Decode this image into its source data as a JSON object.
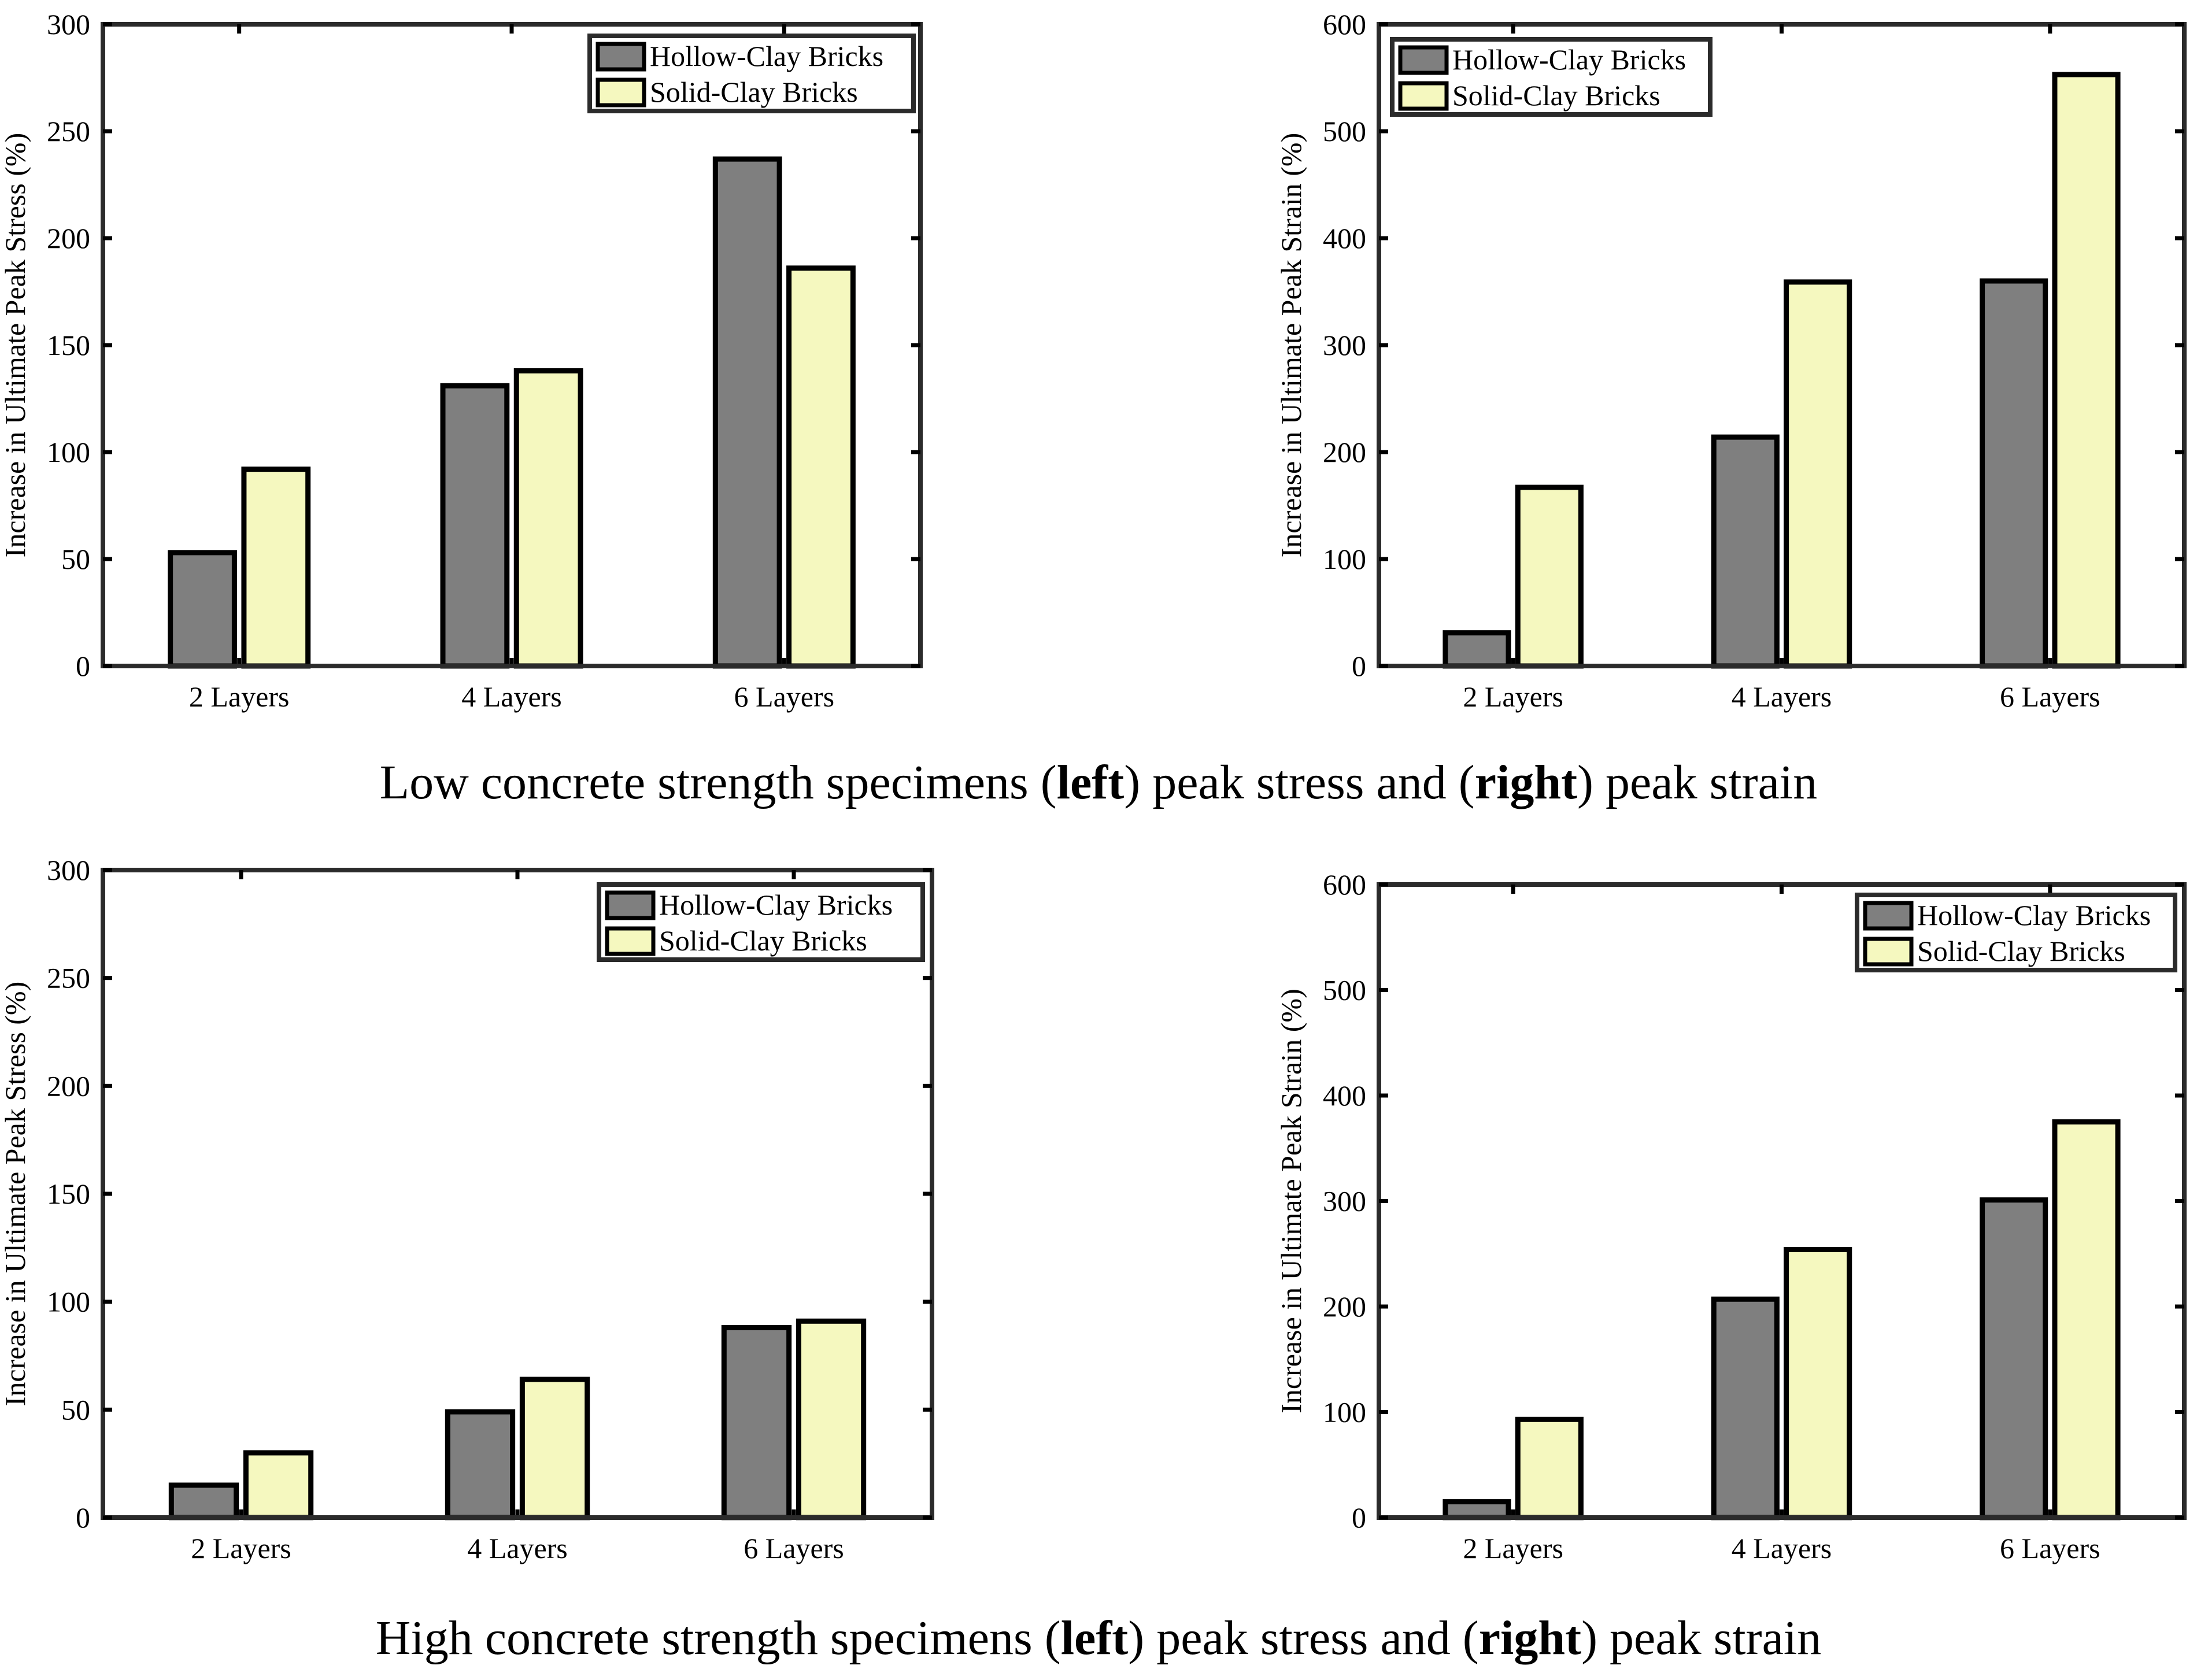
{
  "captions": {
    "top": {
      "pre": "Low concrete strength specimens (",
      "left": "left",
      "mid": ") peak stress and (",
      "right": "right",
      "post": ") peak strain"
    },
    "bottom": {
      "pre": "High concrete strength specimens (",
      "left": "left",
      "mid": ") peak stress and (",
      "right": "right",
      "post": ") peak strain"
    }
  },
  "colors": {
    "hollow": "#7f7f7f",
    "solid": "#f5f8bf",
    "frame": "#2b2b2b"
  },
  "chart_data": [
    {
      "id": "low-stress",
      "type": "bar",
      "categories": [
        "2 Layers",
        "4 Layers",
        "6 Layers"
      ],
      "series": [
        {
          "name": "Hollow-Clay Bricks",
          "values": [
            53,
            131,
            237
          ]
        },
        {
          "name": "Solid-Clay Bricks",
          "values": [
            92,
            138,
            186
          ]
        }
      ],
      "ylabel": "Increase in Ultimate Peak Stress (%)",
      "ylim": [
        0,
        300
      ],
      "yticks": [
        0,
        50,
        100,
        150,
        200,
        250,
        300
      ],
      "legend": "top-right"
    },
    {
      "id": "low-strain",
      "type": "bar",
      "categories": [
        "2 Layers",
        "4 Layers",
        "6 Layers"
      ],
      "series": [
        {
          "name": "Hollow-Clay Bricks",
          "values": [
            31,
            214,
            360
          ]
        },
        {
          "name": "Solid-Clay Bricks",
          "values": [
            167,
            359,
            553
          ]
        }
      ],
      "ylabel": "Increase in Ultimate Peak Strain (%)",
      "ylim": [
        0,
        600
      ],
      "yticks": [
        0,
        100,
        200,
        300,
        400,
        500,
        600
      ],
      "legend": "top-left"
    },
    {
      "id": "high-stress",
      "type": "bar",
      "categories": [
        "2 Layers",
        "4 Layers",
        "6 Layers"
      ],
      "series": [
        {
          "name": "Hollow-Clay Bricks",
          "values": [
            15,
            49,
            88
          ]
        },
        {
          "name": "Solid-Clay Bricks",
          "values": [
            30,
            64,
            91
          ]
        }
      ],
      "ylabel": "Increase in Ultimate Peak Stress (%)",
      "ylim": [
        0,
        300
      ],
      "yticks": [
        0,
        50,
        100,
        150,
        200,
        250,
        300
      ],
      "legend": "top-right"
    },
    {
      "id": "high-strain",
      "type": "bar",
      "categories": [
        "2 Layers",
        "4 Layers",
        "6 Layers"
      ],
      "series": [
        {
          "name": "Hollow-Clay Bricks",
          "values": [
            15,
            207,
            301
          ]
        },
        {
          "name": "Solid-Clay Bricks",
          "values": [
            93,
            254,
            375
          ]
        }
      ],
      "ylabel": "Increase in Ultimate Peak Strain (%)",
      "ylim": [
        0,
        600
      ],
      "yticks": [
        0,
        100,
        200,
        300,
        400,
        500,
        600
      ],
      "legend": "top-right"
    }
  ]
}
